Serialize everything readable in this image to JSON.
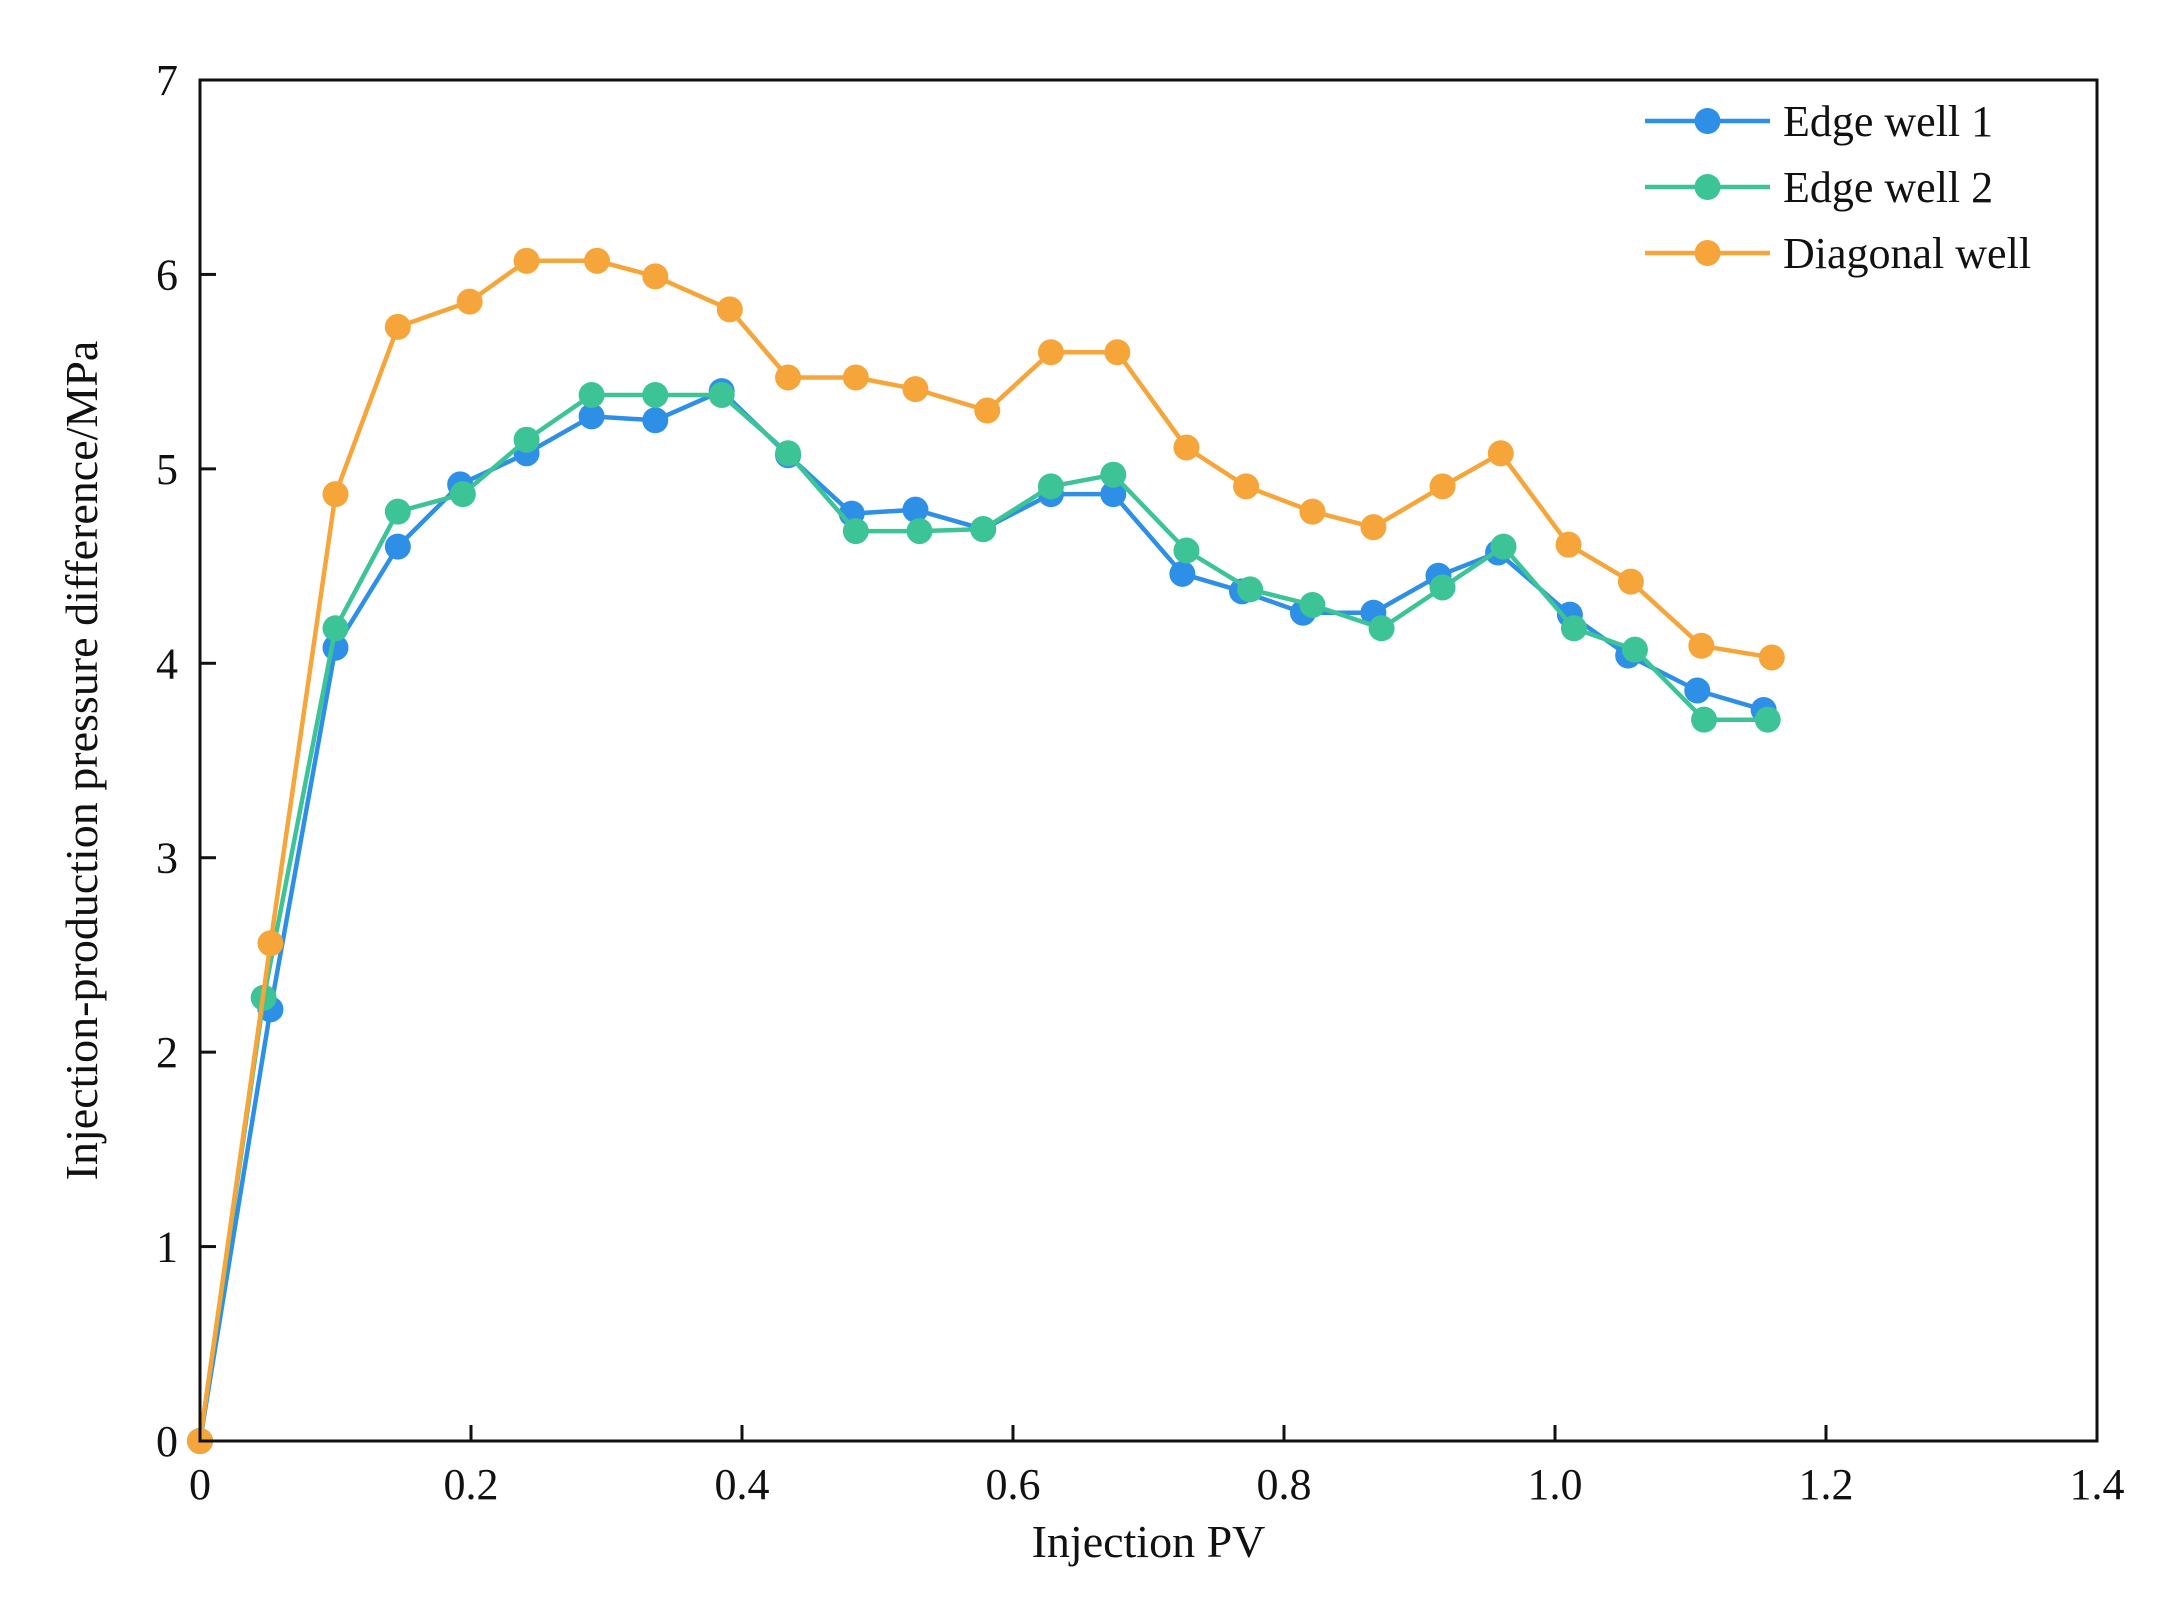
{
  "chart_data": {
    "type": "line",
    "title": "",
    "xlabel": "Injection PV",
    "ylabel": "Injection-production pressure difference/MPa",
    "xlim": [
      0,
      1.4
    ],
    "ylim": [
      0,
      7
    ],
    "xticks": [
      0,
      0.2,
      0.4,
      0.6,
      0.8,
      1.0,
      1.2,
      1.4
    ],
    "xtick_labels": [
      "0",
      "0.2",
      "0.4",
      "0.6",
      "0.8",
      "1.0",
      "1.2",
      "1.4"
    ],
    "yticks": [
      0,
      1,
      2,
      3,
      4,
      5,
      6,
      7
    ],
    "ytick_labels": [
      "0",
      "1",
      "2",
      "3",
      "4",
      "5",
      "6",
      "7"
    ],
    "grid": false,
    "legend_position": "top-right",
    "series": [
      {
        "name": "Edge well 1",
        "color": "#2E8FE6",
        "x": [
          0,
          0.052,
          0.1,
          0.146,
          0.192,
          0.241,
          0.289,
          0.336,
          0.385,
          0.434,
          0.481,
          0.528,
          0.578,
          0.628,
          0.674,
          0.725,
          0.769,
          0.814,
          0.866,
          0.914,
          0.958,
          1.011,
          1.054,
          1.105,
          1.154
        ],
        "y": [
          0,
          2.22,
          4.08,
          4.6,
          4.92,
          5.08,
          5.27,
          5.25,
          5.4,
          5.07,
          4.77,
          4.79,
          4.69,
          4.87,
          4.87,
          4.46,
          4.37,
          4.26,
          4.26,
          4.45,
          4.57,
          4.25,
          4.04,
          3.86,
          3.76
        ]
      },
      {
        "name": "Edge well 2",
        "color": "#3CC497",
        "x": [
          0,
          0.047,
          0.1,
          0.146,
          0.194,
          0.241,
          0.289,
          0.336,
          0.385,
          0.434,
          0.484,
          0.531,
          0.578,
          0.628,
          0.674,
          0.728,
          0.775,
          0.821,
          0.872,
          0.917,
          0.962,
          1.014,
          1.059,
          1.11,
          1.157
        ],
        "y": [
          0,
          2.28,
          4.18,
          4.78,
          4.87,
          5.15,
          5.38,
          5.38,
          5.38,
          5.08,
          4.68,
          4.68,
          4.69,
          4.91,
          4.97,
          4.58,
          4.38,
          4.3,
          4.18,
          4.39,
          4.6,
          4.18,
          4.07,
          3.71,
          3.71
        ]
      },
      {
        "name": "Diagonal well",
        "color": "#F5A53A",
        "x": [
          0,
          0.052,
          0.1,
          0.146,
          0.199,
          0.241,
          0.293,
          0.336,
          0.391,
          0.434,
          0.484,
          0.528,
          0.581,
          0.628,
          0.677,
          0.728,
          0.772,
          0.821,
          0.866,
          0.917,
          0.96,
          1.01,
          1.056,
          1.108,
          1.16
        ],
        "y": [
          0,
          2.56,
          4.87,
          5.73,
          5.86,
          6.07,
          6.07,
          5.99,
          5.82,
          5.47,
          5.47,
          5.41,
          5.3,
          5.6,
          5.6,
          5.11,
          4.91,
          4.78,
          4.7,
          4.91,
          5.08,
          4.61,
          4.42,
          4.09,
          4.03
        ]
      }
    ]
  }
}
